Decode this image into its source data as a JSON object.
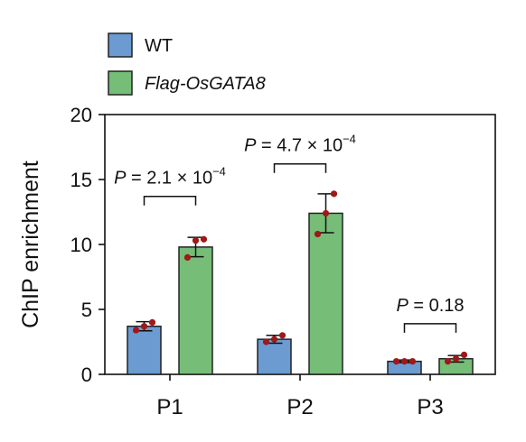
{
  "chart_data": {
    "type": "bar",
    "ylabel": "ChIP enrichment",
    "xlabel": "",
    "ylim": [
      0,
      20
    ],
    "yticks": [
      "0",
      "5",
      "10",
      "15",
      "20"
    ],
    "categories": [
      "P1",
      "P2",
      "P3"
    ],
    "legend_placement": "top-left",
    "series": [
      {
        "name": "WT",
        "color": "#6b9bd1",
        "values": [
          3.7,
          2.7,
          1.0
        ],
        "errors": [
          0.35,
          0.3,
          0.1
        ],
        "points": [
          [
            3.4,
            3.7,
            4.0
          ],
          [
            2.5,
            2.7,
            3.0
          ],
          [
            1.0,
            1.0,
            1.0
          ]
        ]
      },
      {
        "name": "Flag-OsGATA8",
        "color": "#76bd78",
        "values": [
          9.8,
          12.4,
          1.2
        ],
        "errors": [
          0.75,
          1.5,
          0.25
        ],
        "points": [
          [
            9.0,
            10.3,
            10.4
          ],
          [
            10.8,
            12.4,
            13.9
          ],
          [
            1.0,
            1.2,
            1.5
          ]
        ]
      }
    ],
    "point_color": "#a01818",
    "annotations": [
      {
        "category": "P1",
        "p_label": "P",
        "text": " = 2.1 × 10",
        "exp": "−4",
        "y": 13.7
      },
      {
        "category": "P2",
        "p_label": "P",
        "text": " = 4.7 × 10",
        "exp": "−4",
        "y": 16.2
      },
      {
        "category": "P3",
        "p_label": "P",
        "text": " = 0.18",
        "exp": "",
        "y": 3.9
      }
    ]
  }
}
